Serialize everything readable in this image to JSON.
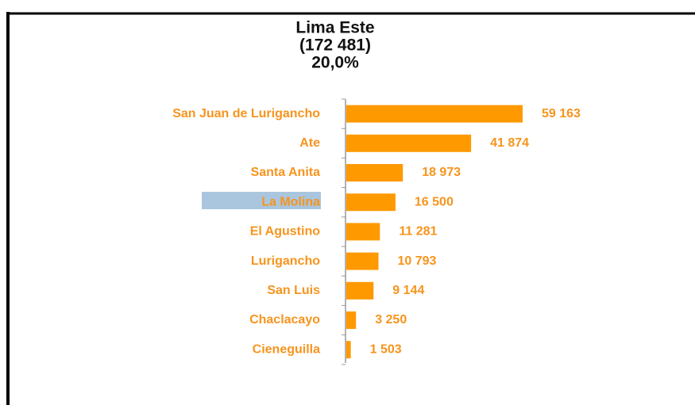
{
  "chart_data": {
    "type": "bar",
    "orientation": "horizontal",
    "title": "Lima Este",
    "subtitle": "(172 481)",
    "annotation": "20,0%",
    "categories": [
      "San Juan de Lurigancho",
      "Ate",
      "Santa Anita",
      "La Molina",
      "El Agustino",
      "Lurigancho",
      "San Luis",
      "Chaclacayo",
      "Cieneguilla"
    ],
    "values": [
      59163,
      41874,
      18973,
      16500,
      11281,
      10793,
      9144,
      3250,
      1503
    ],
    "value_labels": [
      "59 163",
      "41 874",
      "18 973",
      "16 500",
      "11 281",
      "10 793",
      "9 144",
      "3 250",
      "1 503"
    ],
    "color": "#ff9900"
  }
}
